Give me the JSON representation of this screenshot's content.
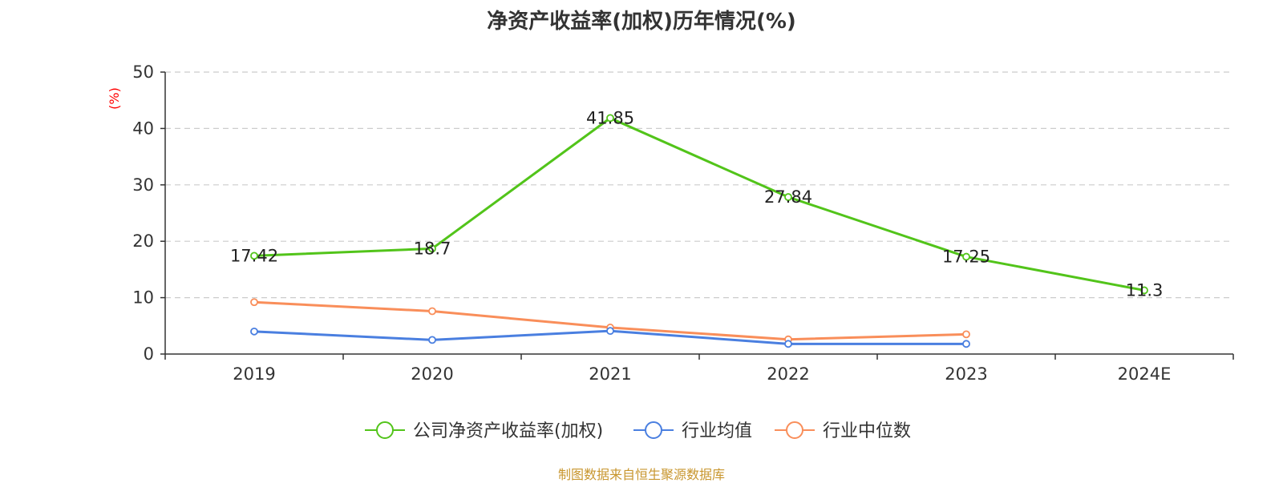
{
  "title": "净资产收益率(加权)历年情况(%)",
  "source": "制图数据来自恒生聚源数据库",
  "colors": {
    "company": "#52c41a",
    "industry_avg": "#4a7fe0",
    "industry_median": "#f98e5a",
    "unit": "#ff0000",
    "source": "#c8962e"
  },
  "chart_data": {
    "type": "line",
    "categories": [
      "2019",
      "2020",
      "2021",
      "2022",
      "2023",
      "2024E"
    ],
    "ylabel": "(%)",
    "ylim": [
      0,
      50
    ],
    "yticks": [
      0,
      10,
      20,
      30,
      40,
      50
    ],
    "grid": true,
    "legend_position": "bottom",
    "series": [
      {
        "name": "公司净资产收益率(加权)",
        "color": "#52c41a",
        "values": [
          17.42,
          18.7,
          41.85,
          27.84,
          17.25,
          11.3
        ],
        "labels": [
          "17.42",
          "18.7",
          "41.85",
          "27.84",
          "17.25",
          "11.3"
        ]
      },
      {
        "name": "行业均值",
        "color": "#4a7fe0",
        "values": [
          4.0,
          2.5,
          4.1,
          1.8,
          1.8,
          null
        ]
      },
      {
        "name": "行业中位数",
        "color": "#f98e5a",
        "values": [
          9.2,
          7.6,
          4.7,
          2.6,
          3.5,
          null
        ]
      }
    ]
  }
}
